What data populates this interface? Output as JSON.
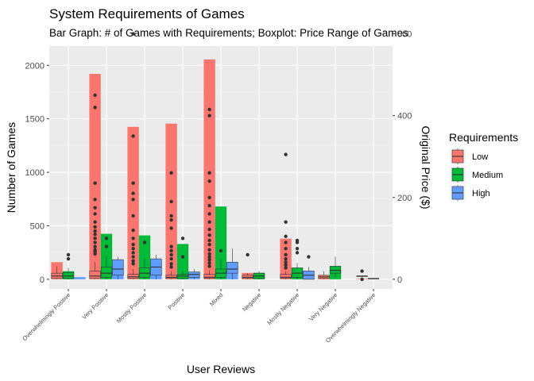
{
  "chart_data": {
    "type": "bar",
    "title": "System Requirements of Games",
    "subtitle": "Bar Graph: # of Games with Requirements; Boxplot: Price Range of Games",
    "xlabel": "User Reviews",
    "ylabel": "Number of Games",
    "ylabel_right": "Original Price ($)",
    "categories": [
      "Overwhelmingly Positive",
      "Very Positive",
      "Mostly Positive",
      "Positive",
      "Mixed",
      "Negative",
      "Mostly Negative",
      "Very Negative",
      "Overwhelmingly Negative"
    ],
    "y_ticks": [
      "0",
      "500",
      "1000",
      "1500",
      "2000"
    ],
    "y2_ticks": [
      "0",
      "200",
      "400",
      "600"
    ],
    "ylim": [
      -90,
      2180
    ],
    "y2lim": [
      -23.5,
      570
    ],
    "grid": true,
    "legend_position": "right",
    "legend": {
      "title": "Requirements",
      "items": [
        {
          "label": "Low",
          "color": "#F8766D"
        },
        {
          "label": "Medium",
          "color": "#00BA38"
        },
        {
          "label": "High",
          "color": "#619CFF"
        }
      ]
    },
    "series": [
      {
        "name": "Low",
        "color": "#F8766D",
        "values": [
          160,
          1920,
          1425,
          1455,
          2055,
          60,
          380,
          15,
          5
        ]
      },
      {
        "name": "Medium",
        "color": "#00BA38",
        "values": [
          75,
          425,
          410,
          330,
          680,
          60,
          100,
          80,
          0
        ]
      },
      {
        "name": "High",
        "color": "#619CFF",
        "values": [
          20,
          160,
          165,
          60,
          140,
          0,
          80,
          0,
          0
        ]
      }
    ],
    "boxplots": [
      {
        "category": "Overwhelmingly Positive",
        "group": "Low",
        "q1": 2,
        "median": 8,
        "q3": 15,
        "whisker_low": 0,
        "whisker_high": 32,
        "outliers": []
      },
      {
        "category": "Overwhelmingly Positive",
        "group": "Medium",
        "q1": 2,
        "median": 8,
        "q3": 17,
        "whisker_low": 0,
        "whisker_high": 28,
        "outliers": [
          50,
          60
        ]
      },
      {
        "category": "Very Positive",
        "group": "Low",
        "q1": 2,
        "median": 8,
        "q3": 20,
        "whisker_low": 0,
        "whisker_high": 42,
        "outliers": [
          62,
          68,
          72,
          80,
          90,
          100,
          110,
          118,
          128,
          140,
          160,
          175,
          195,
          235,
          420,
          450
        ]
      },
      {
        "category": "Very Positive",
        "group": "Medium",
        "q1": 5,
        "median": 15,
        "q3": 30,
        "whisker_low": 0,
        "whisker_high": 55,
        "outliers": [
          80,
          100
        ]
      },
      {
        "category": "Very Positive",
        "group": "High",
        "q1": 10,
        "median": 25,
        "q3": 48,
        "whisker_low": 0,
        "whisker_high": 55,
        "outliers": []
      },
      {
        "category": "Mostly Positive",
        "group": "Low",
        "q1": 2,
        "median": 6,
        "q3": 12,
        "whisker_low": 0,
        "whisker_high": 25,
        "outliers": [
          38,
          45,
          55,
          65,
          75,
          85,
          100,
          120,
          155,
          195,
          210,
          235,
          350,
          600
        ]
      },
      {
        "category": "Mostly Positive",
        "group": "Medium",
        "q1": 5,
        "median": 15,
        "q3": 28,
        "whisker_low": 0,
        "whisker_high": 50,
        "outliers": [
          90
        ]
      },
      {
        "category": "Mostly Positive",
        "group": "High",
        "q1": 10,
        "median": 30,
        "q3": 50,
        "whisker_low": 0,
        "whisker_high": 60,
        "outliers": []
      },
      {
        "category": "Positive",
        "group": "Low",
        "q1": 2,
        "median": 5,
        "q3": 10,
        "whisker_low": 0,
        "whisker_high": 20,
        "outliers": [
          30,
          38,
          50,
          60,
          70,
          80,
          125,
          145,
          155,
          190,
          260
        ]
      },
      {
        "category": "Positive",
        "group": "Medium",
        "q1": 2,
        "median": 8,
        "q3": 12,
        "whisker_low": 0,
        "whisker_high": 20,
        "outliers": [
          55,
          100
        ]
      },
      {
        "category": "Positive",
        "group": "High",
        "q1": 5,
        "median": 12,
        "q3": 18,
        "whisker_low": 0,
        "whisker_high": 25,
        "outliers": []
      },
      {
        "category": "Mixed",
        "group": "Low",
        "q1": 2,
        "median": 5,
        "q3": 12,
        "whisker_low": 0,
        "whisker_high": 22,
        "outliers": [
          32,
          40,
          48,
          55,
          62,
          72,
          85,
          95,
          108,
          122,
          140,
          160,
          180,
          200,
          240,
          260,
          400,
          415
        ]
      },
      {
        "category": "Mixed",
        "group": "Medium",
        "q1": 5,
        "median": 15,
        "q3": 25,
        "whisker_low": 0,
        "whisker_high": 50,
        "outliers": [
          70
        ]
      },
      {
        "category": "Mixed",
        "group": "High",
        "q1": 15,
        "median": 25,
        "q3": 42,
        "whisker_low": 0,
        "whisker_high": 75,
        "outliers": []
      },
      {
        "category": "Negative",
        "group": "Low",
        "q1": 2,
        "median": 5,
        "q3": 10,
        "whisker_low": 0,
        "whisker_high": 15,
        "outliers": [
          60
        ]
      },
      {
        "category": "Negative",
        "group": "Medium",
        "q1": 2,
        "median": 8,
        "q3": 15,
        "whisker_low": 0,
        "whisker_high": 20,
        "outliers": []
      },
      {
        "category": "Mostly Negative",
        "group": "Low",
        "q1": 2,
        "median": 5,
        "q3": 12,
        "whisker_low": 0,
        "whisker_high": 20,
        "outliers": [
          28,
          35,
          42,
          50,
          60,
          75,
          90,
          105,
          140,
          305
        ]
      },
      {
        "category": "Mostly Negative",
        "group": "Medium",
        "q1": 5,
        "median": 15,
        "q3": 28,
        "whisker_low": 0,
        "whisker_high": 40,
        "outliers": [
          65,
          75,
          90,
          95
        ]
      },
      {
        "category": "Mostly Negative",
        "group": "High",
        "q1": 0,
        "median": 10,
        "q3": 20,
        "whisker_low": 0,
        "whisker_high": 30,
        "outliers": [
          55
        ]
      },
      {
        "category": "Very Negative",
        "group": "Low",
        "q1": 2,
        "median": 6,
        "q3": 10,
        "whisker_low": 0,
        "whisker_high": 20,
        "outliers": []
      },
      {
        "category": "Very Negative",
        "group": "Medium",
        "q1": 15,
        "median": 22,
        "q3": 32,
        "whisker_low": 5,
        "whisker_high": 55,
        "outliers": []
      },
      {
        "category": "Overwhelmingly Negative",
        "group": "Low",
        "q1": 8,
        "median": 8,
        "q3": 8,
        "whisker_low": 8,
        "whisker_high": 8,
        "outliers": [
          0,
          20
        ]
      },
      {
        "category": "Overwhelmingly Negative",
        "group": "Medium",
        "q1": 2,
        "median": 2,
        "q3": 2,
        "whisker_low": 2,
        "whisker_high": 2,
        "outliers": []
      }
    ]
  }
}
